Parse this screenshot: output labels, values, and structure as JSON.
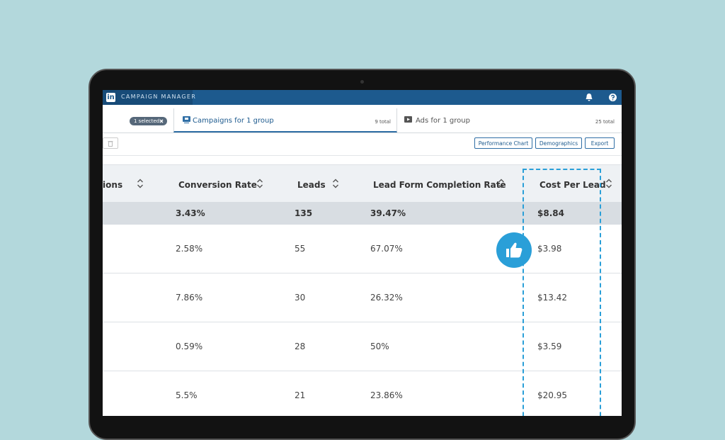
{
  "header": {
    "logo": "in",
    "title": "CAMPAIGN MANAGER"
  },
  "tabs": {
    "selected": "1 selected",
    "items": [
      {
        "label": "Campaigns for 1 group",
        "count": "9 total"
      },
      {
        "label": "Ads for 1 group",
        "count": "25 total"
      }
    ]
  },
  "toolbar": {
    "buttons": [
      "Performance Chart",
      "Demographics",
      "Export"
    ]
  },
  "table": {
    "columns": [
      "rsions",
      "Conversion Rate",
      "Leads",
      "Lead Form Completion Rate",
      "Cost Per Lead"
    ],
    "total": [
      "3.43%",
      "135",
      "39.47%",
      "$8.84"
    ],
    "rows": [
      [
        "2.58%",
        "55",
        "67.07%",
        "$3.98"
      ],
      [
        "7.86%",
        "30",
        "26.32%",
        "$13.42"
      ],
      [
        "0.59%",
        "28",
        "50%",
        "$3.59"
      ],
      [
        "5.5%",
        "21",
        "23.86%",
        "$20.95"
      ]
    ]
  }
}
